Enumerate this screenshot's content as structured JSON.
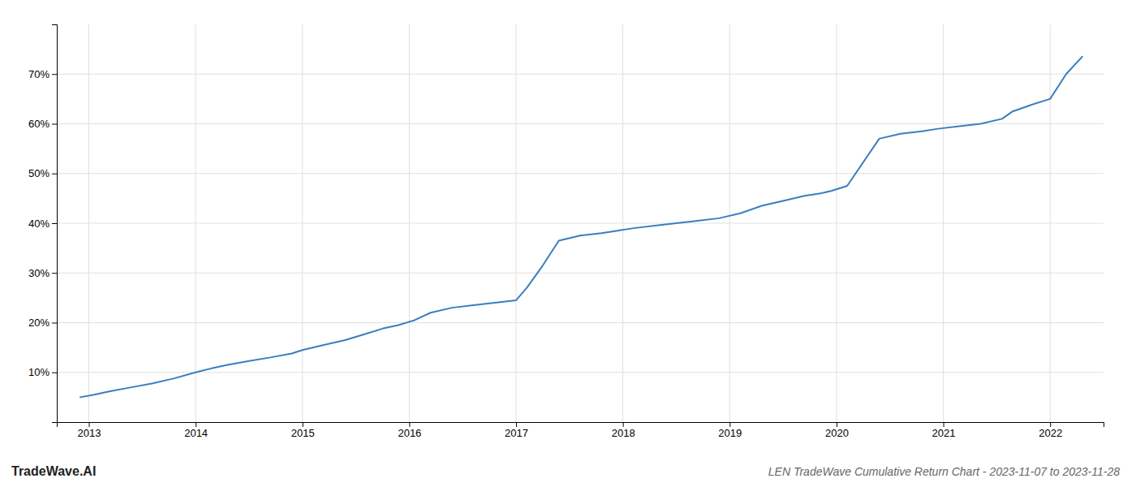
{
  "chart_data": {
    "type": "line",
    "title": "LEN TradeWave Cumulative Return Chart - 2023-11-07 to 2023-11-28",
    "annotations": [
      "TradeWave.AI"
    ],
    "color": "#3a7ebf",
    "x": [
      2012.92,
      2013.05,
      2013.2,
      2013.4,
      2013.6,
      2013.8,
      2014.0,
      2014.15,
      2014.3,
      2014.5,
      2014.7,
      2014.9,
      2015.0,
      2015.2,
      2015.4,
      2015.6,
      2015.75,
      2015.9,
      2016.05,
      2016.2,
      2016.4,
      2016.6,
      2016.8,
      2017.0,
      2017.1,
      2017.25,
      2017.4,
      2017.6,
      2017.8,
      2017.95,
      2018.1,
      2018.3,
      2018.5,
      2018.7,
      2018.9,
      2019.1,
      2019.3,
      2019.5,
      2019.7,
      2019.85,
      2019.95,
      2020.1,
      2020.4,
      2020.6,
      2020.8,
      2020.95,
      2021.15,
      2021.35,
      2021.55,
      2021.65,
      2021.85,
      2022.0,
      2022.15,
      2022.3
    ],
    "values": [
      5.0,
      5.5,
      6.2,
      7.0,
      7.8,
      8.8,
      10.0,
      10.8,
      11.5,
      12.3,
      13.0,
      13.8,
      14.5,
      15.5,
      16.5,
      17.8,
      18.8,
      19.5,
      20.5,
      22.0,
      23.0,
      23.5,
      24.0,
      24.5,
      27.0,
      31.5,
      36.5,
      37.5,
      38.0,
      38.5,
      39.0,
      39.5,
      40.0,
      40.5,
      41.0,
      42.0,
      43.5,
      44.5,
      45.5,
      46.0,
      46.5,
      47.5,
      57.0,
      58.0,
      58.5,
      59.0,
      59.5,
      60.0,
      61.0,
      62.5,
      64.0,
      65.0,
      70.0,
      73.5
    ],
    "xlim": [
      2012.7,
      2022.5
    ],
    "xticks": [
      2013,
      2014,
      2015,
      2016,
      2017,
      2018,
      2019,
      2020,
      2021,
      2022
    ],
    "ylim": [
      0,
      80
    ],
    "yticks": [
      {
        "value": 10,
        "label": "10%"
      },
      {
        "value": 20,
        "label": "20%"
      },
      {
        "value": 30,
        "label": "30%"
      },
      {
        "value": 40,
        "label": "40%"
      },
      {
        "value": 50,
        "label": "50%"
      },
      {
        "value": 60,
        "label": "60%"
      },
      {
        "value": 70,
        "label": "70%"
      }
    ],
    "grid": true
  }
}
